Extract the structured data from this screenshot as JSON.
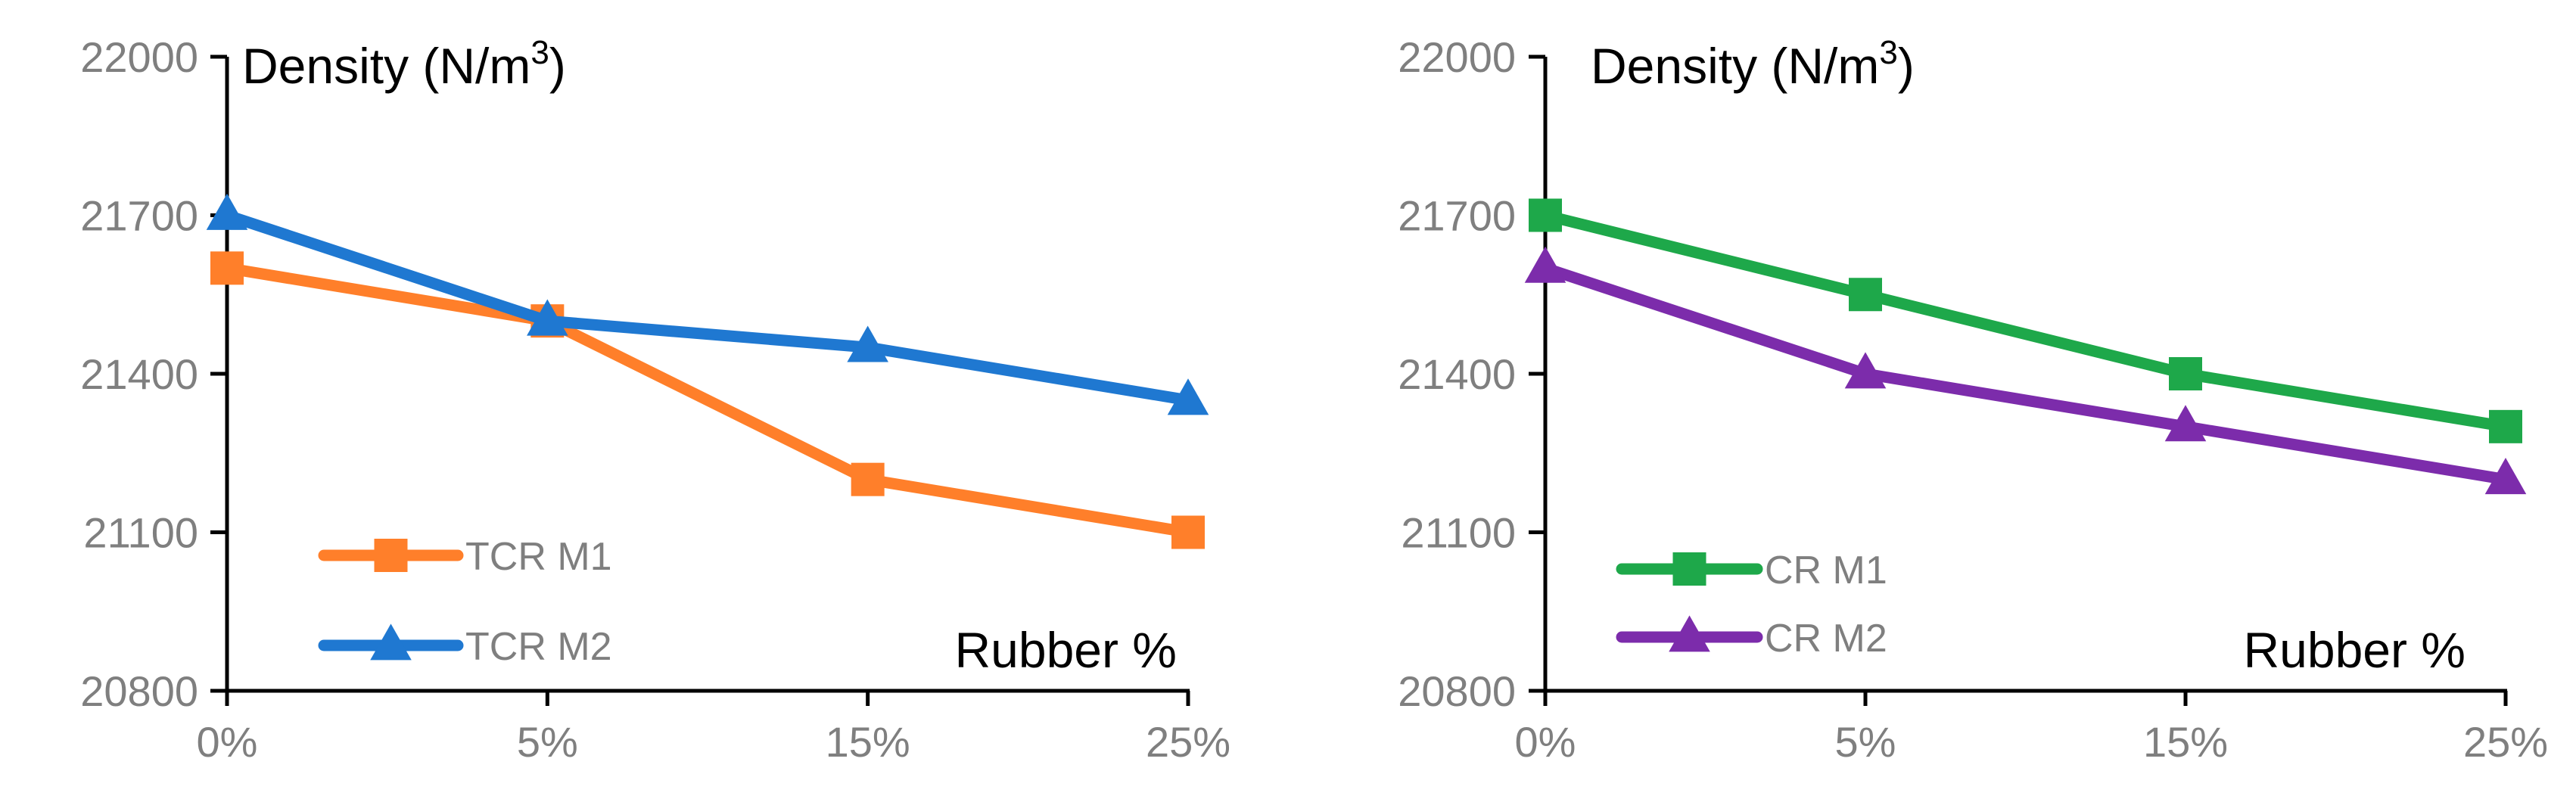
{
  "chart_data": [
    {
      "type": "line",
      "ylabel_main": "Density (N/m",
      "ylabel_sup": "3",
      "ylabel_close": ")",
      "xlabel": "Rubber %",
      "categories": [
        "0%",
        "5%",
        "15%",
        "25%"
      ],
      "ylim": [
        20800,
        22000
      ],
      "yticks": [
        20800,
        21100,
        21400,
        21700,
        22000
      ],
      "grid": false,
      "legend": "bottom-left",
      "series": [
        {
          "name": "TCR M1",
          "values": [
            21600,
            21500,
            21200,
            21100
          ],
          "color": "#ff7f2a",
          "marker": "square"
        },
        {
          "name": "TCR M2",
          "values": [
            21700,
            21500,
            21450,
            21350
          ],
          "color": "#1f78d1",
          "marker": "triangle"
        }
      ]
    },
    {
      "type": "line",
      "ylabel_main": "Density (N/m",
      "ylabel_sup": "3",
      "ylabel_close": ")",
      "xlabel": "Rubber %",
      "categories": [
        "0%",
        "5%",
        "15%",
        "25%"
      ],
      "ylim": [
        20800,
        22000
      ],
      "yticks": [
        20800,
        21100,
        21400,
        21700,
        22000
      ],
      "grid": false,
      "legend": "bottom-left",
      "series": [
        {
          "name": "CR M1",
          "values": [
            21700,
            21550,
            21400,
            21300
          ],
          "color": "#1ea84a",
          "marker": "square"
        },
        {
          "name": "CR M2",
          "values": [
            21600,
            21400,
            21300,
            21200
          ],
          "color": "#7c2cab",
          "marker": "triangle"
        }
      ]
    }
  ]
}
